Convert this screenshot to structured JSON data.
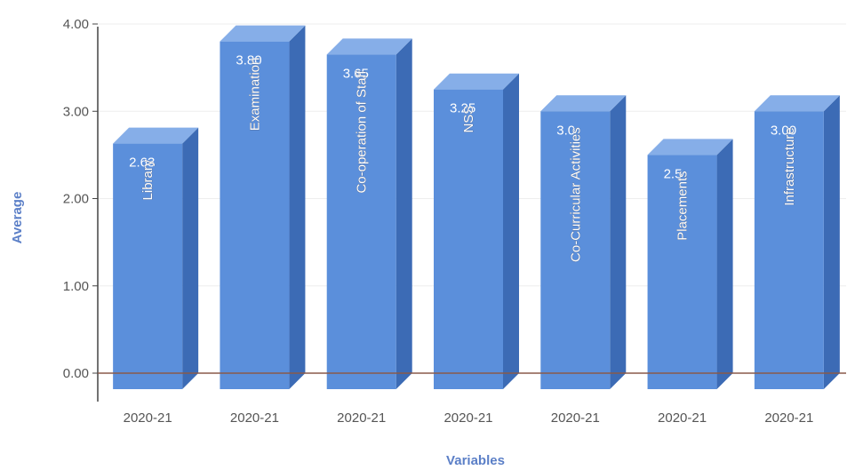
{
  "chart_data": {
    "type": "bar",
    "title": "",
    "xlabel": "Variables",
    "ylabel": "Average",
    "ylim": [
      0,
      4
    ],
    "yticks": [
      "0.00",
      "1.00",
      "2.00",
      "3.00",
      "4.00"
    ],
    "categories": [
      "2020-21",
      "2020-21",
      "2020-21",
      "2020-21",
      "2020-21",
      "2020-21",
      "2020-21"
    ],
    "bar_names": [
      "Library",
      "Examination",
      "Co-operation of Staff",
      "NSS",
      "Co-Curricular Activities",
      "Placements",
      "Infrastructure"
    ],
    "values": [
      2.63,
      3.8,
      3.65,
      3.25,
      3.0,
      2.5,
      3.0
    ],
    "value_labels": [
      "2.63",
      "3.80",
      "3.65",
      "3.25",
      "3.0",
      "2.5",
      "3.00"
    ],
    "grid": true,
    "legend": "none",
    "style": "3d-bar",
    "colors": {
      "bar_front": "#5b8fdb",
      "bar_top": "#86aee8",
      "bar_side": "#3c6bb5",
      "axis_title": "#5b7fc7",
      "baseline": "#8a5a4a"
    }
  }
}
